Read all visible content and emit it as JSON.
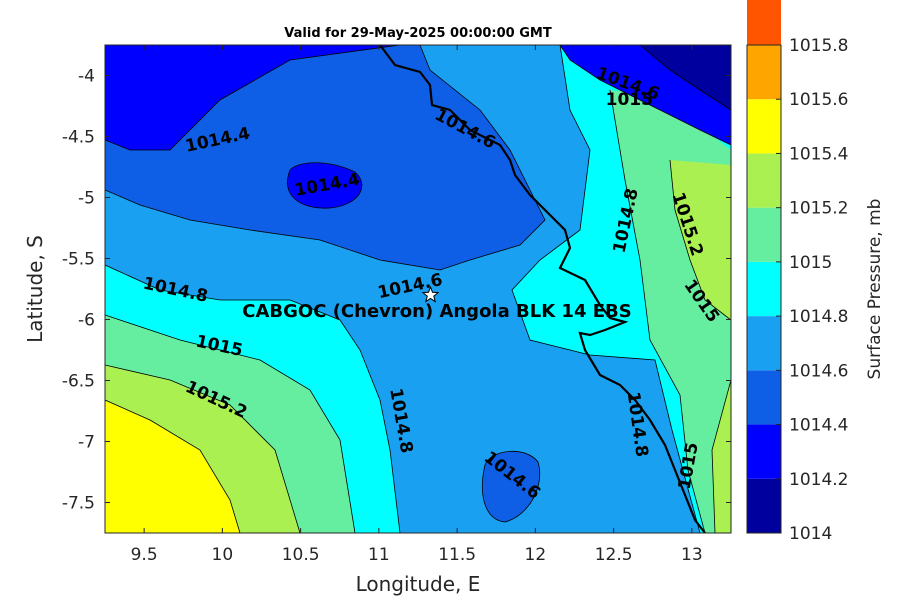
{
  "chart_data": {
    "type": "contour",
    "title": "Valid for 29-May-2025 00:00:00 GMT",
    "xlabel": "Longitude, E",
    "ylabel": "Latitude, S",
    "xlim": [
      9.25,
      13.25
    ],
    "ylim": [
      -7.75,
      -3.75
    ],
    "x_ticks": [
      9.5,
      10,
      10.5,
      11,
      11.5,
      12,
      12.5,
      13
    ],
    "x_tick_labels": [
      "9.5",
      "10",
      "10.5",
      "11",
      "11.5",
      "12",
      "12.5",
      "13"
    ],
    "y_ticks": [
      -4,
      -4.5,
      -5,
      -5.5,
      -6,
      -6.5,
      -7,
      -7.5
    ],
    "y_tick_labels": [
      "-4",
      "-4.5",
      "-5",
      "-5.5",
      "-6",
      "-6.5",
      "-7",
      "-7.5"
    ],
    "colorbar": {
      "label": "Surface Pressure, mb",
      "levels": [
        1014,
        1014.2,
        1014.4,
        1014.6,
        1014.8,
        1015,
        1015.2,
        1015.4,
        1015.6,
        1015.8
      ],
      "tick_labels": [
        "1014",
        "1014.2",
        "1014.4",
        "1014.6",
        "1014.8",
        "1015",
        "1015.2",
        "1015.4",
        "1015.6",
        "1015.8"
      ],
      "colors": [
        "#00009f",
        "#0000ff",
        "#0f5fe6",
        "#1aa0f0",
        "#00ffff",
        "#66eea0",
        "#aaf050",
        "#ffff00",
        "#ffa500",
        "#ff5500"
      ]
    },
    "site": {
      "name": "CABGOC (Chevron)  Angola BLK 14  EBS",
      "lon": 11.33,
      "lat": -5.8
    },
    "contour_labels": [
      {
        "text": "1014.4",
        "lon": 9.97,
        "lat": -4.53,
        "rotation": -12
      },
      {
        "text": "1014.4",
        "lon": 10.67,
        "lat": -4.9,
        "rotation": -10
      },
      {
        "text": "1014.6",
        "lon": 11.55,
        "lat": -4.44,
        "rotation": 28
      },
      {
        "text": "1014.6",
        "lon": 12.59,
        "lat": -4.07,
        "rotation": 20
      },
      {
        "text": "1015",
        "lon": 12.6,
        "lat": -4.2,
        "rotation": 0
      },
      {
        "text": "1014.8",
        "lon": 12.58,
        "lat": -5.19,
        "rotation": -78
      },
      {
        "text": "1015.2",
        "lon": 12.97,
        "lat": -5.22,
        "rotation": 72
      },
      {
        "text": "1015",
        "lon": 13.06,
        "lat": -5.85,
        "rotation": 55
      },
      {
        "text": "1014.6",
        "lon": 11.2,
        "lat": -5.73,
        "rotation": -12
      },
      {
        "text": "1014.8",
        "lon": 9.7,
        "lat": -5.76,
        "rotation": 12
      },
      {
        "text": "1015",
        "lon": 9.98,
        "lat": -6.22,
        "rotation": 12
      },
      {
        "text": "1015.2",
        "lon": 9.96,
        "lat": -6.66,
        "rotation": 25
      },
      {
        "text": "1014.8",
        "lon": 11.14,
        "lat": -6.83,
        "rotation": 80
      },
      {
        "text": "1014.8",
        "lon": 12.65,
        "lat": -6.86,
        "rotation": 82
      },
      {
        "text": "1014.6",
        "lon": 11.85,
        "lat": -7.28,
        "rotation": 38
      },
      {
        "text": "1015",
        "lon": 12.98,
        "lat": -7.2,
        "rotation": -80
      }
    ]
  }
}
